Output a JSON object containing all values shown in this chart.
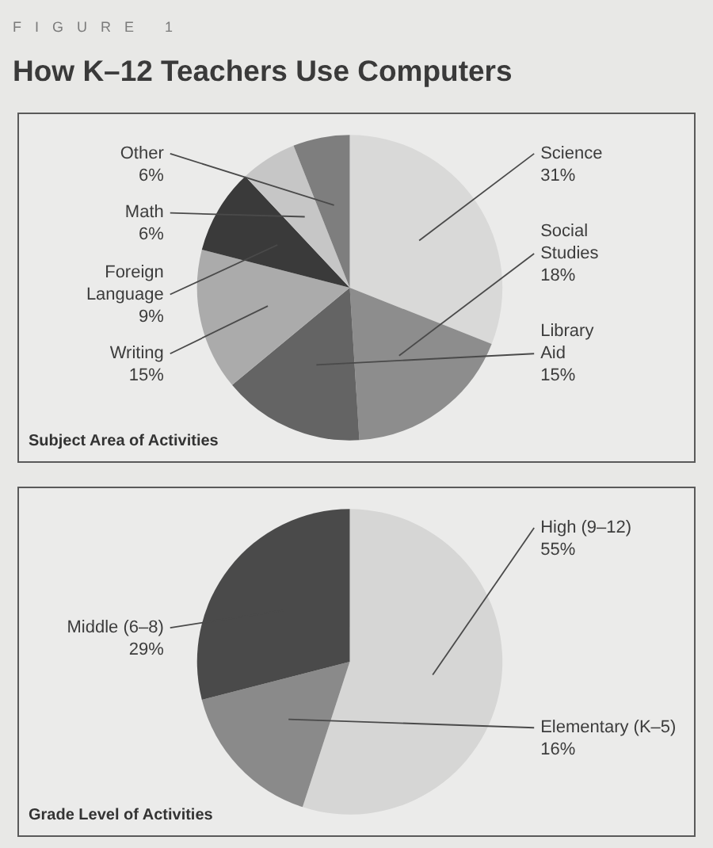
{
  "chart_data": [
    {
      "type": "other",
      "title": "How K–12 Teachers Use Computers",
      "annotations": [
        "FIGURE 1"
      ]
    },
    {
      "type": "pie",
      "title": "Subject Area of Activities",
      "categories": [
        "Science",
        "Social Studies",
        "Library Aid",
        "Writing",
        "Foreign Language",
        "Math",
        "Other"
      ],
      "values": [
        31,
        18,
        15,
        15,
        9,
        6,
        6
      ],
      "colors": [
        "#d9d9d8",
        "#8d8d8d",
        "#646464",
        "#ababab",
        "#3a3a3a",
        "#c6c6c6",
        "#7e7e7e"
      ],
      "value_labels": [
        "31%",
        "18%",
        "15%",
        "15%",
        "9%",
        "6%",
        "6%"
      ]
    },
    {
      "type": "pie",
      "title": "Grade Level of Activities",
      "categories": [
        "High (9–12)",
        "Elementary (K–5)",
        "Middle (6–8)"
      ],
      "values": [
        55,
        16,
        29
      ],
      "colors": [
        "#d6d6d5",
        "#8a8a8a",
        "#4a4a4a"
      ],
      "value_labels": [
        "55%",
        "16%",
        "29%"
      ]
    }
  ]
}
